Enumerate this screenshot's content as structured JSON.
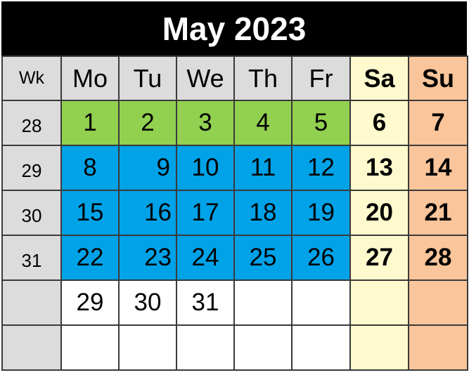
{
  "title": "May 2023",
  "headers": {
    "wk": "Wk",
    "mo": "Mo",
    "tu": "Tu",
    "we": "We",
    "th": "Th",
    "fr": "Fr",
    "sa": "Sa",
    "su": "Su"
  },
  "colors": {
    "title_bg": "#000000",
    "header_bg": "#dcdcdc",
    "first_week": "#92d050",
    "weekday_block": "#00a2e8",
    "saturday": "#fffacd",
    "sunday": "#fac59a"
  },
  "weeks": [
    {
      "wk": "28",
      "days": [
        "1",
        "2",
        "3",
        "4",
        "5",
        "6",
        "7"
      ]
    },
    {
      "wk": "29",
      "days": [
        "8",
        "9",
        "10",
        "11",
        "12",
        "13",
        "14"
      ]
    },
    {
      "wk": "30",
      "days": [
        "15",
        "16",
        "17",
        "18",
        "19",
        "20",
        "21"
      ]
    },
    {
      "wk": "31",
      "days": [
        "22",
        "23",
        "24",
        "25",
        "26",
        "27",
        "28"
      ]
    },
    {
      "wk": "",
      "days": [
        "29",
        "30",
        "31",
        "",
        "",
        "",
        ""
      ]
    },
    {
      "wk": "",
      "days": [
        "",
        "",
        "",
        "",
        "",
        "",
        ""
      ]
    }
  ]
}
